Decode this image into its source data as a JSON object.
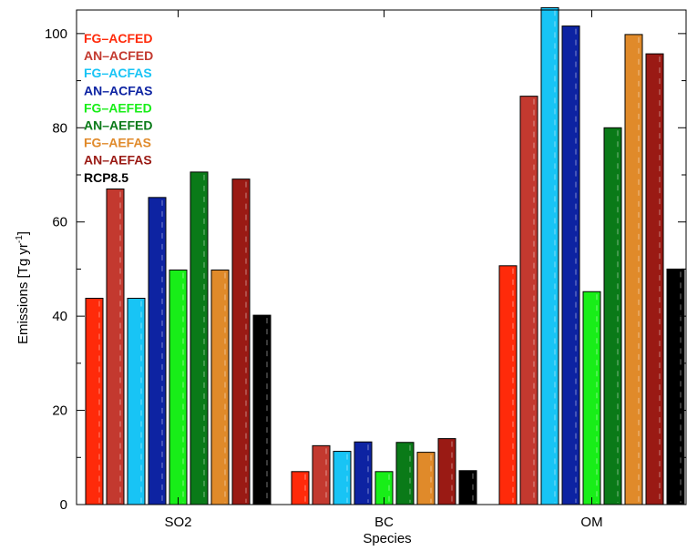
{
  "chart_data": {
    "type": "bar",
    "categories": [
      "SO2",
      "BC",
      "OM"
    ],
    "xlabel": "Species",
    "ylabel_main": "Emissions [Tg yr",
    "ylabel_sup": "-1",
    "ylabel_close": "]",
    "ylim": [
      0,
      105
    ],
    "yticks": [
      0,
      20,
      40,
      60,
      80,
      100
    ],
    "grid": false,
    "legend_position": "top-left",
    "series": [
      {
        "name": "FG–ACFED",
        "color": "#ff2a0a",
        "values": [
          43.8,
          7.0,
          50.7
        ]
      },
      {
        "name": "AN–ACFED",
        "color": "#c3392f",
        "values": [
          67.0,
          12.5,
          86.7
        ]
      },
      {
        "name": "FG–ACFAS",
        "color": "#18c4f5",
        "values": [
          43.8,
          11.3,
          105.5
        ]
      },
      {
        "name": "AN–ACFAS",
        "color": "#0d23a2",
        "values": [
          65.2,
          13.3,
          101.6
        ]
      },
      {
        "name": "FG–AEFED",
        "color": "#18ee18",
        "values": [
          49.8,
          7.0,
          45.2
        ]
      },
      {
        "name": "AN–AEFED",
        "color": "#0a7a18",
        "values": [
          70.6,
          13.2,
          80.0
        ]
      },
      {
        "name": "FG–AEFAS",
        "color": "#e08a2a",
        "values": [
          49.8,
          11.1,
          99.8
        ]
      },
      {
        "name": "AN–AEFAS",
        "color": "#9a1a14",
        "values": [
          69.1,
          14.0,
          95.7
        ]
      },
      {
        "name": "RCP8.5",
        "color": "#000000",
        "values": [
          40.2,
          7.2,
          50.0
        ]
      }
    ]
  }
}
